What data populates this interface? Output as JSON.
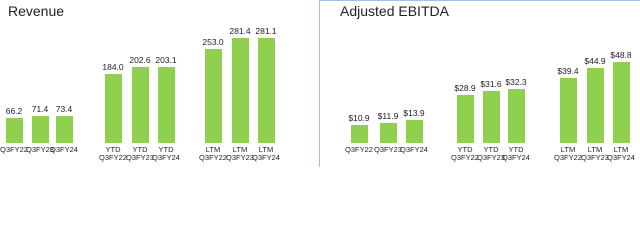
{
  "chart_data": [
    {
      "type": "bar",
      "title": "Revenue",
      "color": "#8fd14f",
      "categories": [
        "Q3FY22",
        "Q3FY23",
        "Q3FY24",
        "YTD\nQ3FY22",
        "YTD\nQ3FY23",
        "YTD\nQ3FY24",
        "LTM\nQ3FY22",
        "LTM\nQ3FY23",
        "LTM\nQ3FY24"
      ],
      "values": [
        66.2,
        71.4,
        73.4,
        184.0,
        202.6,
        203.1,
        253.0,
        281.4,
        281.1
      ],
      "value_labels": [
        "66.2",
        "71.4",
        "73.4",
        "184.0",
        "202.6",
        "203.1",
        "253.0",
        "281.4",
        "281.1"
      ]
    },
    {
      "type": "bar",
      "title": "Adjusted EBITDA",
      "color": "#8fd14f",
      "categories": [
        "Q3FY22",
        "Q3FY23",
        "Q3FY24",
        "YTD\nQ3FY22",
        "YTD\nQ3FY23",
        "YTD\nQ3FY24",
        "LTM\nQ3FY22",
        "LTM\nQ3FY23",
        "LTM\nQ3FY24"
      ],
      "values": [
        10.9,
        11.9,
        13.9,
        28.9,
        31.6,
        32.3,
        39.4,
        44.9,
        48.8
      ],
      "value_labels": [
        "$10.9",
        "$11.9",
        "$13.9",
        "$28.9",
        "$31.6",
        "$32.3",
        "$39.4",
        "$44.9",
        "$48.8"
      ]
    }
  ]
}
